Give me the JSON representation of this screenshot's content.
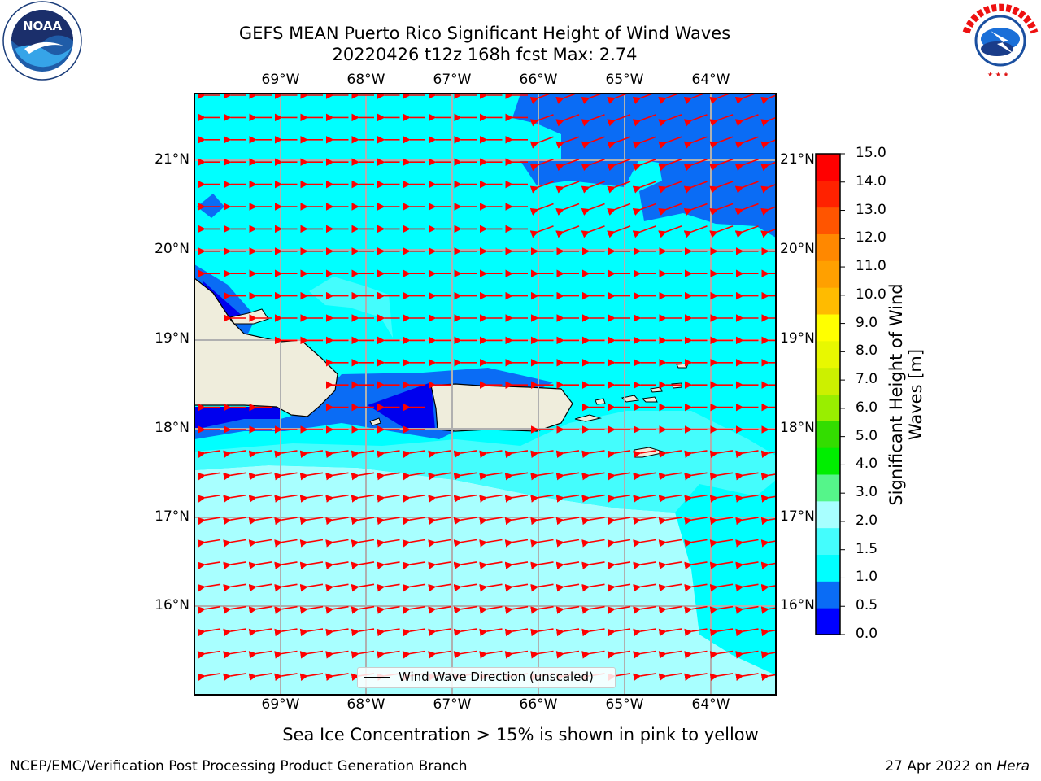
{
  "title": {
    "line1": "GEFS MEAN Puerto Rico Significant Height of Wind Waves",
    "line2": "20220426 t12z 168h fcst   Max: 2.74"
  },
  "map": {
    "lon_ticks": [
      "69°W",
      "68°W",
      "67°W",
      "66°W",
      "65°W",
      "64°W"
    ],
    "lat_ticks": [
      "21°N",
      "20°N",
      "19°N",
      "18°N",
      "17°N",
      "16°N"
    ],
    "ocean_colors": {
      "band_0_05": "#0000ee",
      "band_05_10": "#0a6cf5",
      "band_10_15": "#00ffff",
      "band_15_20": "#44fdfd",
      "band_20_30": "#a8ffff"
    },
    "land_color": "#efeddc",
    "arrow_color": "#ff0000"
  },
  "legend": {
    "label": "Wind Wave Direction (unscaled)"
  },
  "colorbar": {
    "label_line1": "Significant Height of Wind",
    "label_line2": "Waves [m]",
    "ticks": [
      "15.0",
      "14.0",
      "13.0",
      "12.0",
      "11.0",
      "10.0",
      "9.0",
      "8.0",
      "7.0",
      "6.0",
      "5.0",
      "4.0",
      "3.0",
      "2.0",
      "1.5",
      "1.0",
      "0.5",
      "0.0"
    ],
    "colors_bottom_to_top": [
      "#0000ff",
      "#0a6cf5",
      "#00ffff",
      "#44fdfd",
      "#a8ffff",
      "#55f58a",
      "#00ee00",
      "#33dd00",
      "#99ee00",
      "#ccf000",
      "#e8f800",
      "#ffff00",
      "#ffbb00",
      "#ffa000",
      "#ff8800",
      "#ff5500",
      "#ff2200",
      "#ff0000"
    ]
  },
  "caption": "Sea Ice Concentration > 15% is shown in pink to yellow",
  "footer": {
    "left": "NCEP/EMC/Verification Post Processing Product Generation Branch",
    "right_prefix": "27 Apr 2022 on ",
    "right_host": "Hera"
  }
}
